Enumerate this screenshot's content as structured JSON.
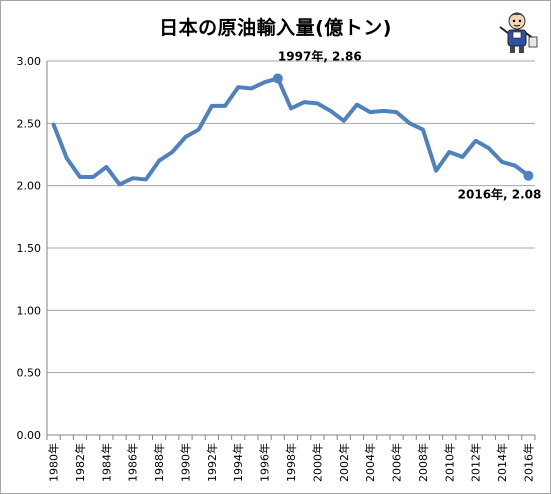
{
  "chart_data": {
    "type": "line",
    "title": "日本の原油輸入量(億トン)",
    "xlabel": "",
    "ylabel": "",
    "ylim": [
      0,
      3.0
    ],
    "yticks": [
      "0.00",
      "0.50",
      "1.00",
      "1.50",
      "2.00",
      "2.50",
      "3.00"
    ],
    "x_tick_labels": [
      "1980年",
      "1982年",
      "1984年",
      "1986年",
      "1988年",
      "1990年",
      "1992年",
      "1994年",
      "1996年",
      "1998年",
      "2000年",
      "2002年",
      "2004年",
      "2006年",
      "2008年",
      "2010年",
      "2012年",
      "2014年",
      "2016年"
    ],
    "x": [
      1980,
      1981,
      1982,
      1983,
      1984,
      1985,
      1986,
      1987,
      1988,
      1989,
      1990,
      1991,
      1992,
      1993,
      1994,
      1995,
      1996,
      1997,
      1998,
      1999,
      2000,
      2001,
      2002,
      2003,
      2004,
      2005,
      2006,
      2007,
      2008,
      2009,
      2010,
      2011,
      2012,
      2013,
      2014,
      2015,
      2016
    ],
    "series": [
      {
        "values": [
          2.49,
          2.22,
          2.07,
          2.07,
          2.15,
          2.01,
          2.06,
          2.05,
          2.2,
          2.27,
          2.39,
          2.45,
          2.64,
          2.64,
          2.79,
          2.78,
          2.83,
          2.86,
          2.62,
          2.67,
          2.66,
          2.6,
          2.52,
          2.65,
          2.59,
          2.6,
          2.59,
          2.5,
          2.45,
          2.12,
          2.27,
          2.23,
          2.36,
          2.3,
          2.19,
          2.16,
          2.08
        ],
        "color": "#4f81bd"
      }
    ],
    "annotations": [
      {
        "x": 1997,
        "y": 2.86,
        "text": "1997年, 2.86"
      },
      {
        "x": 2016,
        "y": 2.08,
        "text": "2016年, 2.08"
      }
    ],
    "grid": true,
    "gridline_color": "#a6a6a6",
    "legend": "none"
  }
}
